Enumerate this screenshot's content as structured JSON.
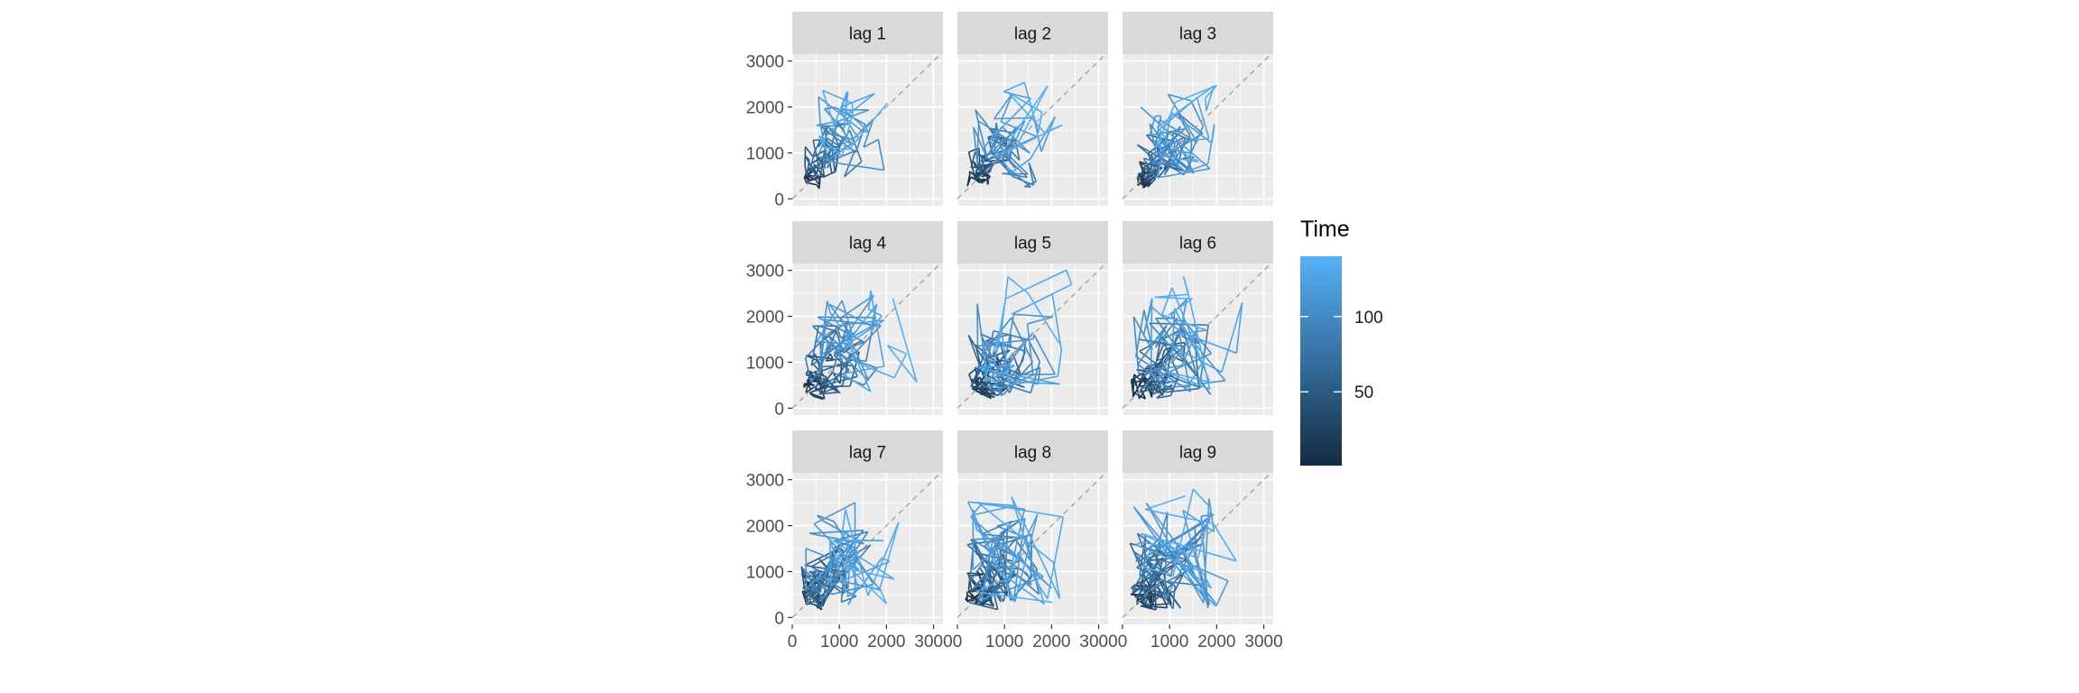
{
  "chart_data": {
    "type": "line",
    "title": "",
    "xlabel": "",
    "ylabel": "",
    "facet_labels": [
      "lag 1",
      "lag 2",
      "lag 3",
      "lag 4",
      "lag 5",
      "lag 6",
      "lag 7",
      "lag 8",
      "lag 9"
    ],
    "xlim": [
      0,
      3200
    ],
    "ylim": [
      -150,
      3150
    ],
    "x_ticks": [
      0,
      1000,
      2000,
      3000
    ],
    "x_tick_labels": [
      "0",
      "1000",
      "2000",
      "3000"
    ],
    "y_ticks": [
      0,
      1000,
      2000,
      3000
    ],
    "y_tick_labels": [
      "0",
      "1000",
      "2000",
      "3000"
    ],
    "reference_line": "y = x (dashed)",
    "grid": true,
    "legend": {
      "title": "Time",
      "position": "right",
      "type": "colorbar",
      "range": [
        1,
        140
      ],
      "breaks": [
        50,
        100
      ],
      "break_labels": [
        "50",
        "100"
      ],
      "color_low": "#132B43",
      "color_high": "#56B1F7"
    },
    "series_ranges": {
      "lag 1": {
        "x": [
          0,
          3000
        ],
        "y": [
          0,
          3000
        ]
      },
      "lag 2": {
        "x": [
          0,
          3000
        ],
        "y": [
          0,
          3000
        ]
      },
      "lag 3": {
        "x": [
          0,
          3000
        ],
        "y": [
          0,
          3000
        ]
      },
      "lag 4": {
        "x": [
          0,
          3000
        ],
        "y": [
          0,
          3000
        ]
      },
      "lag 5": {
        "x": [
          0,
          3000
        ],
        "y": [
          0,
          3000
        ]
      },
      "lag 6": {
        "x": [
          0,
          3000
        ],
        "y": [
          0,
          3000
        ]
      },
      "lag 7": {
        "x": [
          0,
          3000
        ],
        "y": [
          0,
          3000
        ]
      },
      "lag 8": {
        "x": [
          0,
          3000
        ],
        "y": [
          0,
          3000
        ]
      },
      "lag 9": {
        "x": [
          0,
          3000
        ],
        "y": [
          0,
          3000
        ]
      }
    }
  }
}
